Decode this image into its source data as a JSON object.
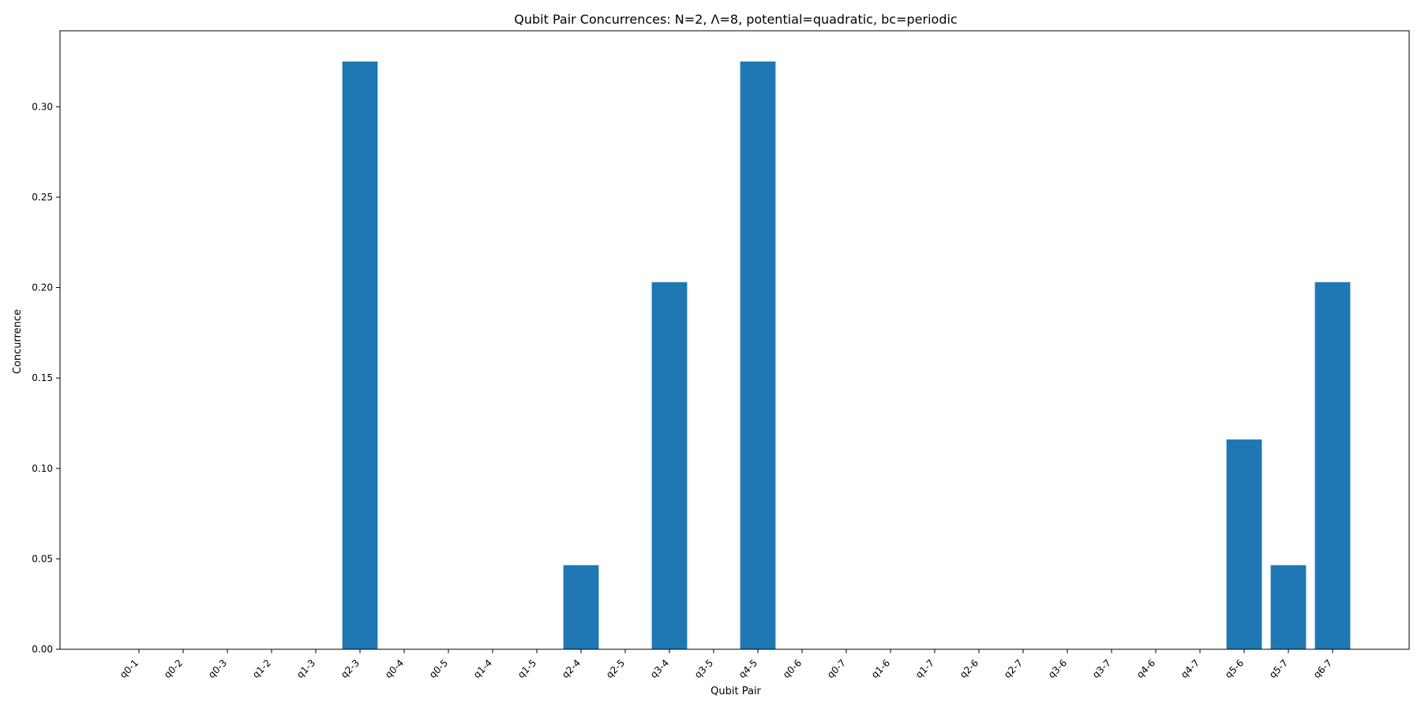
{
  "chart_data": {
    "type": "bar",
    "title": "Qubit Pair Concurrences: N=2, Λ=8, potential=quadratic, bc=periodic",
    "xlabel": "Qubit Pair",
    "ylabel": "Concurrence",
    "ylim": [
      0,
      0.342
    ],
    "yticks": [
      0.0,
      0.05,
      0.1,
      0.15,
      0.2,
      0.25,
      0.3
    ],
    "ytick_labels": [
      "0.00",
      "0.05",
      "0.10",
      "0.15",
      "0.20",
      "0.25",
      "0.30"
    ],
    "grid": false,
    "legend": "none",
    "bar_color": "#1f77b4",
    "categories": [
      "q0-1",
      "q0-2",
      "q0-3",
      "q1-2",
      "q1-3",
      "q2-3",
      "q0-4",
      "q0-5",
      "q1-4",
      "q1-5",
      "q2-4",
      "q2-5",
      "q3-4",
      "q3-5",
      "q4-5",
      "q0-6",
      "q0-7",
      "q1-6",
      "q1-7",
      "q2-6",
      "q2-7",
      "q3-6",
      "q3-7",
      "q4-6",
      "q4-7",
      "q5-6",
      "q5-7",
      "q6-7"
    ],
    "values": [
      0,
      0,
      0,
      0,
      0,
      0.325,
      0,
      0,
      0,
      0,
      0.0465,
      0,
      0.203,
      0,
      0.325,
      0,
      0,
      0,
      0,
      0,
      0,
      0,
      0,
      0,
      0,
      0.116,
      0.0465,
      0.203
    ]
  }
}
